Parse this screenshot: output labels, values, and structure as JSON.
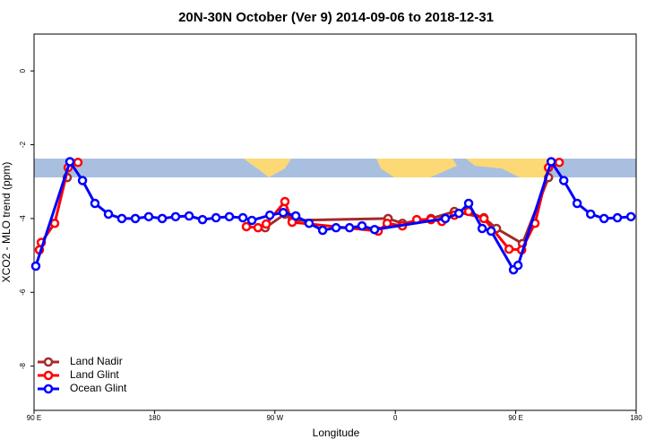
{
  "chart_data": {
    "type": "line",
    "title": "20N-30N October (Ver 9)   2014-09-06 to 2018-12-31",
    "x_label": "Longitude",
    "y_label": "XCO2 - MLO trend (ppm)",
    "xlim": [
      90,
      540
    ],
    "ylim": [
      -9.2,
      1
    ],
    "xticks": [
      {
        "value": 90,
        "label": "90 E"
      },
      {
        "value": 180,
        "label": "180"
      },
      {
        "value": 270,
        "label": "90 W"
      },
      {
        "value": 360,
        "label": "0"
      },
      {
        "value": 450,
        "label": "90 E"
      },
      {
        "value": 540,
        "label": "180"
      }
    ],
    "yticks": [
      0,
      -2,
      -4,
      -6,
      -8
    ],
    "legend": "bottom-left",
    "series": [
      {
        "name": "Land Nadir",
        "color": "#a52a2a",
        "x": [
          114.8,
          262.8,
          277.5,
          283.0,
          354.6,
          365.3,
          386.7,
          404.1,
          426.2,
          435.6,
          455.0,
          474.5
        ],
        "values": [
          -2.89,
          -4.25,
          -3.88,
          -4.05,
          -4.0,
          -4.13,
          -4.0,
          -3.81,
          -3.98,
          -4.27,
          -4.68,
          -2.89
        ]
      },
      {
        "name": "Land Glint",
        "color": "#ff0000",
        "x": [
          94.0,
          95.4,
          105.4,
          115.5,
          122.8,
          248.7,
          257.4,
          263.5,
          277.5,
          282.9,
          347.2,
          353.9,
          365.3,
          376.0,
          386.7,
          394.8,
          404.1,
          414.8,
          426.2,
          445.0,
          454.4,
          464.4,
          474.5,
          482.5
        ],
        "values": [
          -4.85,
          -4.65,
          -4.13,
          -2.62,
          -2.48,
          -4.22,
          -4.25,
          -4.15,
          -3.54,
          -4.1,
          -4.34,
          -4.13,
          -4.2,
          -4.03,
          -4.03,
          -4.08,
          -3.91,
          -3.81,
          -4.0,
          -4.83,
          -4.85,
          -4.13,
          -2.62,
          -2.48
        ]
      },
      {
        "name": "Ocean Glint",
        "color": "#0000ff",
        "x": [
          91.3,
          116.8,
          126.2,
          135.5,
          145.6,
          155.6,
          165.7,
          175.7,
          185.8,
          195.8,
          205.9,
          215.9,
          226.0,
          236.0,
          246.1,
          252.8,
          266.2,
          276.2,
          285.6,
          295.6,
          305.7,
          315.7,
          325.8,
          335.1,
          344.5,
          397.4,
          407.5,
          414.8,
          424.9,
          431.6,
          448.3,
          451.7,
          476.5,
          485.9,
          495.9,
          506.0,
          516.0,
          526.0,
          536.1
        ],
        "values": [
          -5.29,
          -2.46,
          -2.97,
          -3.59,
          -3.88,
          -4.0,
          -4.0,
          -3.95,
          -4.0,
          -3.95,
          -3.93,
          -4.03,
          -3.98,
          -3.95,
          -3.98,
          -4.05,
          -3.91,
          -3.84,
          -3.93,
          -4.13,
          -4.32,
          -4.25,
          -4.25,
          -4.2,
          -4.3,
          -4.0,
          -3.86,
          -3.59,
          -4.27,
          -4.34,
          -5.39,
          -5.27,
          -2.46,
          -2.97,
          -3.59,
          -3.88,
          -4.0,
          -3.98,
          -3.95
        ]
      }
    ]
  }
}
